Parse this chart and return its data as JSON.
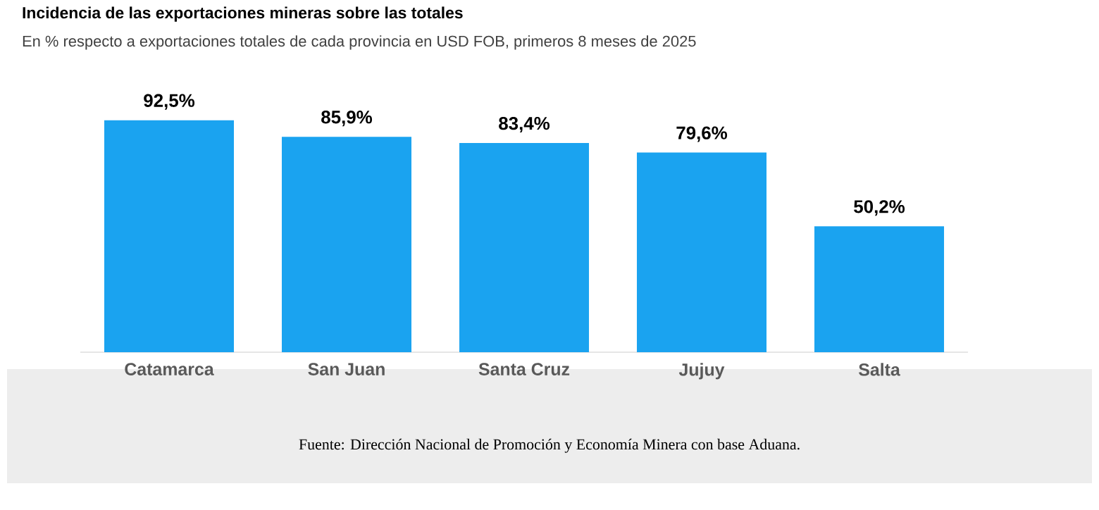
{
  "chart_data": {
    "type": "bar",
    "title": "Incidencia de las exportaciones mineras sobre las totales",
    "subtitle": "En % respecto a exportaciones totales de cada provincia en USD FOB, primeros 8 meses de 2025",
    "categories": [
      "Catamarca",
      "San Juan",
      "Santa Cruz",
      "Jujuy",
      "Salta"
    ],
    "values": [
      92.5,
      85.9,
      83.4,
      79.6,
      50.2
    ],
    "value_labels": [
      "92,5%",
      "85,9%",
      "83,4%",
      "79,6%",
      "50,2%"
    ],
    "color": "#1aa3f0",
    "annotations": [
      "Fuente: Dirección Nacional de Promoción y Economía Minera con base Aduana."
    ]
  }
}
